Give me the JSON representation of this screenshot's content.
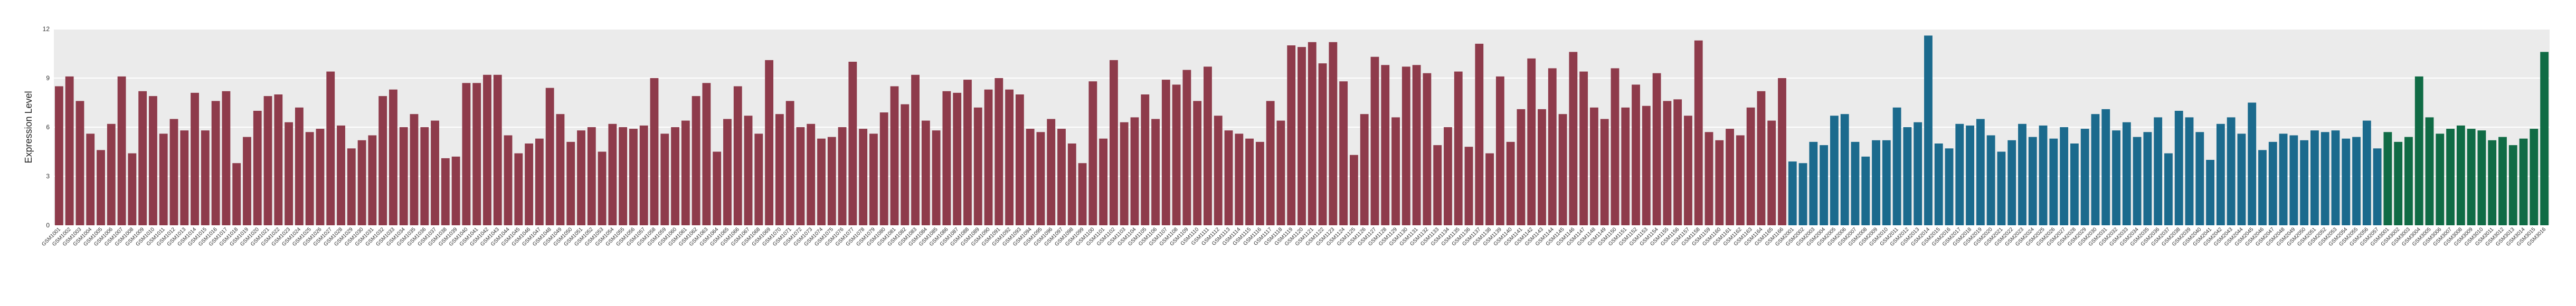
{
  "chart_data": {
    "type": "bar",
    "y_label": "Expression Level",
    "ylim": [
      0,
      12
    ],
    "yticks": [
      0,
      3,
      6,
      9,
      12
    ],
    "grid": true,
    "series": [
      {
        "color": "#8e3b4b",
        "categories": [
          "GSM1001",
          "GSM1002",
          "GSM1003",
          "GSM1004",
          "GSM1005",
          "GSM1006",
          "GSM1007",
          "GSM1008",
          "GSM1009",
          "GSM1010",
          "GSM1011",
          "GSM1012",
          "GSM1013",
          "GSM1014",
          "GSM1015",
          "GSM1016",
          "GSM1017",
          "GSM1018",
          "GSM1019",
          "GSM1020",
          "GSM1021",
          "GSM1022",
          "GSM1023",
          "GSM1024",
          "GSM1025",
          "GSM1026",
          "GSM1027",
          "GSM1028",
          "GSM1029",
          "GSM1030",
          "GSM1031",
          "GSM1032",
          "GSM1033",
          "GSM1034",
          "GSM1035",
          "GSM1036",
          "GSM1037",
          "GSM1038",
          "GSM1039",
          "GSM1040",
          "GSM1041",
          "GSM1042",
          "GSM1043",
          "GSM1044",
          "GSM1045",
          "GSM1046",
          "GSM1047",
          "GSM1048",
          "GSM1049",
          "GSM1050",
          "GSM1051",
          "GSM1052",
          "GSM1053",
          "GSM1054",
          "GSM1055",
          "GSM1056",
          "GSM1057",
          "GSM1058",
          "GSM1059",
          "GSM1060",
          "GSM1061",
          "GSM1062",
          "GSM1063",
          "GSM1064",
          "GSM1065",
          "GSM1066",
          "GSM1067",
          "GSM1068",
          "GSM1069",
          "GSM1070",
          "GSM1071",
          "GSM1072",
          "GSM1073",
          "GSM1074",
          "GSM1075",
          "GSM1076",
          "GSM1077",
          "GSM1078",
          "GSM1079",
          "GSM1080",
          "GSM1081",
          "GSM1082",
          "GSM1083",
          "GSM1084",
          "GSM1085",
          "GSM1086",
          "GSM1087",
          "GSM1088",
          "GSM1089",
          "GSM1090",
          "GSM1091",
          "GSM1092",
          "GSM1093",
          "GSM1094",
          "GSM1095",
          "GSM1096",
          "GSM1097",
          "GSM1098",
          "GSM1099",
          "GSM1100",
          "GSM1101",
          "GSM1102",
          "GSM1103",
          "GSM1104",
          "GSM1105",
          "GSM1106",
          "GSM1107",
          "GSM1108",
          "GSM1109",
          "GSM1110",
          "GSM1111",
          "GSM1112",
          "GSM1113",
          "GSM1114",
          "GSM1115",
          "GSM1116",
          "GSM1117",
          "GSM1118",
          "GSM1119",
          "GSM1120",
          "GSM1121",
          "GSM1122",
          "GSM1123",
          "GSM1124",
          "GSM1125",
          "GSM1126",
          "GSM1127",
          "GSM1128",
          "GSM1129",
          "GSM1130",
          "GSM1131",
          "GSM1132",
          "GSM1133",
          "GSM1134",
          "GSM1135",
          "GSM1136",
          "GSM1137",
          "GSM1138",
          "GSM1139",
          "GSM1140",
          "GSM1141",
          "GSM1142",
          "GSM1143",
          "GSM1144",
          "GSM1145",
          "GSM1146",
          "GSM1147",
          "GSM1148",
          "GSM1149",
          "GSM1150",
          "GSM1151",
          "GSM1152",
          "GSM1153",
          "GSM1154",
          "GSM1155",
          "GSM1156",
          "GSM1157",
          "GSM1158",
          "GSM1159",
          "GSM1160",
          "GSM1161",
          "GSM1162",
          "GSM1163",
          "GSM1164",
          "GSM1165",
          "GSM1166"
        ],
        "values": [
          8.5,
          9.1,
          7.6,
          5.6,
          4.6,
          6.2,
          9.1,
          4.4,
          8.2,
          7.9,
          5.6,
          6.5,
          5.8,
          8.1,
          5.8,
          7.6,
          8.2,
          3.8,
          5.4,
          7.0,
          7.9,
          8.0,
          6.3,
          7.2,
          5.7,
          5.9,
          9.4,
          6.1,
          4.7,
          5.2,
          5.5,
          7.9,
          8.3,
          6.0,
          6.8,
          6.0,
          6.4,
          4.1,
          4.2,
          8.7,
          8.7,
          9.2,
          9.2,
          5.5,
          4.4,
          5.0,
          5.3,
          8.4,
          6.8,
          5.1,
          5.8,
          6.0,
          4.5,
          6.2,
          6.0,
          5.9,
          6.1,
          9.0,
          5.6,
          6.0,
          6.4,
          7.9,
          8.7,
          4.5,
          6.5,
          8.5,
          6.7,
          5.6,
          10.1,
          6.8,
          7.6,
          6.0,
          6.2,
          5.3,
          5.4,
          6.0,
          10.0,
          5.9,
          5.6,
          6.9,
          8.5,
          7.4,
          9.2,
          6.4,
          5.8,
          8.2,
          8.1,
          8.9,
          7.2,
          8.3,
          9.0,
          8.3,
          8.0,
          5.9,
          5.7,
          6.5,
          5.9,
          5.0,
          3.8,
          8.8,
          5.3,
          10.1,
          6.3,
          6.6,
          8.0,
          6.5,
          8.9,
          8.6,
          9.5,
          7.6,
          9.7,
          6.7,
          5.8,
          5.6,
          5.3,
          5.1,
          7.6,
          6.4,
          11.0,
          10.9,
          11.2,
          9.9,
          11.2,
          8.8,
          4.3,
          6.8,
          10.3,
          9.8,
          6.6,
          9.7,
          9.8,
          9.3,
          4.9,
          6.0,
          9.4,
          4.8,
          11.1,
          4.4,
          9.1,
          5.1,
          7.1,
          10.2,
          7.1,
          9.6,
          6.8,
          10.6,
          9.4,
          7.2,
          6.5,
          9.6,
          7.2,
          8.6,
          7.3,
          9.3,
          7.6,
          7.7,
          6.7,
          11.3,
          5.7,
          5.2,
          5.9,
          5.5,
          7.2,
          8.2,
          6.4,
          9.0
        ]
      },
      {
        "color": "#1b6a8d",
        "categories": [
          "GSM2001",
          "GSM2002",
          "GSM2003",
          "GSM2004",
          "GSM2005",
          "GSM2006",
          "GSM2007",
          "GSM2008",
          "GSM2009",
          "GSM2010",
          "GSM2011",
          "GSM2012",
          "GSM2013",
          "GSM2014",
          "GSM2015",
          "GSM2016",
          "GSM2017",
          "GSM2018",
          "GSM2019",
          "GSM2020",
          "GSM2021",
          "GSM2022",
          "GSM2023",
          "GSM2024",
          "GSM2025",
          "GSM2026",
          "GSM2027",
          "GSM2028",
          "GSM2029",
          "GSM2030",
          "GSM2031",
          "GSM2032",
          "GSM2033",
          "GSM2034",
          "GSM2035",
          "GSM2036",
          "GSM2037",
          "GSM2038",
          "GSM2039",
          "GSM2040",
          "GSM2041",
          "GSM2042",
          "GSM2043",
          "GSM2044",
          "GSM2045",
          "GSM2046",
          "GSM2047",
          "GSM2048",
          "GSM2049",
          "GSM2050",
          "GSM2051",
          "GSM2052",
          "GSM2053",
          "GSM2054",
          "GSM2055",
          "GSM2056",
          "GSM2057"
        ],
        "values": [
          3.9,
          3.8,
          5.1,
          4.9,
          6.7,
          6.8,
          5.1,
          4.2,
          5.2,
          5.2,
          7.2,
          6.0,
          6.3,
          11.6,
          5.0,
          4.7,
          6.2,
          6.1,
          6.5,
          5.5,
          4.5,
          5.2,
          6.2,
          5.4,
          6.1,
          5.3,
          6.0,
          5.0,
          5.9,
          6.8,
          7.1,
          5.8,
          6.3,
          5.4,
          5.7,
          6.6,
          4.4,
          7.0,
          6.6,
          5.7,
          4.0,
          6.2,
          6.6,
          5.6,
          7.5,
          4.6,
          5.1,
          5.6,
          5.5,
          5.2,
          5.8,
          5.7,
          5.8,
          5.3,
          5.4,
          6.4,
          4.7
        ]
      },
      {
        "color": "#106b45",
        "categories": [
          "GSM3001",
          "GSM3002",
          "GSM3003",
          "GSM3004",
          "GSM3005",
          "GSM3006",
          "GSM3007",
          "GSM3008",
          "GSM3009",
          "GSM3010",
          "GSM3011",
          "GSM3012",
          "GSM3013",
          "GSM3014",
          "GSM3015",
          "GSM3016"
        ],
        "values": [
          5.7,
          5.1,
          5.4,
          9.1,
          6.6,
          5.6,
          5.9,
          6.1,
          5.9,
          5.8,
          5.2,
          5.4,
          4.9,
          5.3,
          5.9,
          10.6
        ]
      }
    ]
  }
}
